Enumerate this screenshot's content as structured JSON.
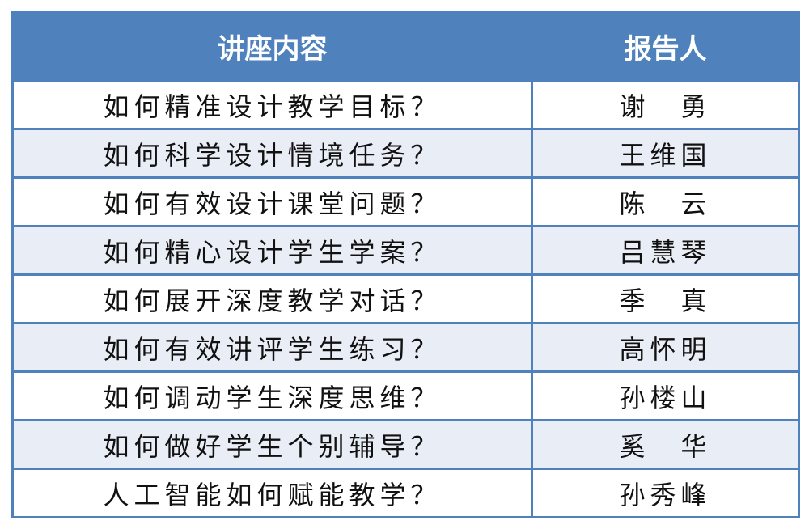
{
  "table": {
    "headers": [
      "讲座内容",
      "报告人"
    ],
    "rows": [
      {
        "topic": "如何精准设计教学目标？",
        "speaker": "谢　勇"
      },
      {
        "topic": "如何科学设计情境任务？",
        "speaker": "王维国"
      },
      {
        "topic": "如何有效设计课堂问题？",
        "speaker": "陈　云"
      },
      {
        "topic": "如何精心设计学生学案？",
        "speaker": "吕慧琴"
      },
      {
        "topic": "如何展开深度教学对话？",
        "speaker": "季　真"
      },
      {
        "topic": "如何有效讲评学生练习？",
        "speaker": "高怀明"
      },
      {
        "topic": "如何调动学生深度思维？",
        "speaker": "孙楼山"
      },
      {
        "topic": "如何做好学生个别辅导？",
        "speaker": "奚　华"
      },
      {
        "topic": "人工智能如何赋能教学？",
        "speaker": "孙秀峰"
      }
    ],
    "colors": {
      "header": "#4f81bd",
      "border": "#4f81bd",
      "alt_row": "#e9eef6"
    }
  }
}
